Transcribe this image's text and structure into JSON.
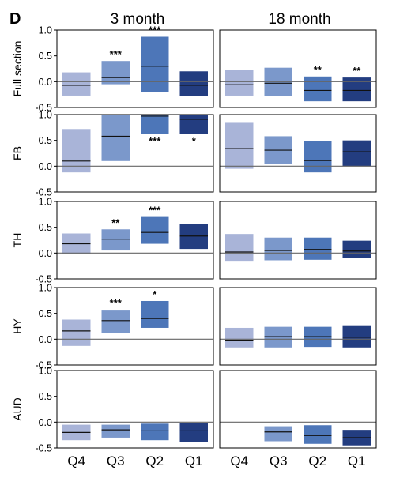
{
  "panel_label": "D",
  "column_titles": [
    "3 month",
    "18 month"
  ],
  "categories": [
    "Q4",
    "Q3",
    "Q2",
    "Q1"
  ],
  "colors": [
    "#a9b4d8",
    "#7b98cb",
    "#4d76b8",
    "#233d80"
  ],
  "chart_data": {
    "type": "box",
    "grid": false,
    "yticks": [
      "1.0",
      "0.5",
      "0.0",
      "-0.5"
    ],
    "rows": [
      {
        "label": "Full section",
        "ylim": [
          -0.5,
          1.0
        ],
        "panels": [
          {
            "title": "3 month",
            "boxes": [
              {
                "category": "Q4",
                "low": -0.27,
                "high": 0.18,
                "median": -0.07,
                "sig": ""
              },
              {
                "category": "Q3",
                "low": -0.05,
                "high": 0.4,
                "median": 0.08,
                "sig": "***"
              },
              {
                "category": "Q2",
                "low": -0.2,
                "high": 0.87,
                "median": 0.3,
                "sig": "***"
              },
              {
                "category": "Q1",
                "low": -0.28,
                "high": 0.2,
                "median": -0.07,
                "sig": ""
              }
            ]
          },
          {
            "title": "18 month",
            "boxes": [
              {
                "category": "Q4",
                "low": -0.27,
                "high": 0.22,
                "median": -0.06,
                "sig": ""
              },
              {
                "category": "Q3",
                "low": -0.28,
                "high": 0.27,
                "median": -0.03,
                "sig": ""
              },
              {
                "category": "Q2",
                "low": -0.38,
                "high": 0.1,
                "median": -0.17,
                "sig": "**"
              },
              {
                "category": "Q1",
                "low": -0.38,
                "high": 0.08,
                "median": -0.17,
                "sig": "**"
              }
            ]
          }
        ]
      },
      {
        "label": "FB",
        "ylim": [
          -0.5,
          1.0
        ],
        "panels": [
          {
            "title": "3 month",
            "boxes": [
              {
                "category": "Q4",
                "low": -0.12,
                "high": 0.72,
                "median": 0.1,
                "sig": ""
              },
              {
                "category": "Q3",
                "low": 0.1,
                "high": 1.0,
                "median": 0.58,
                "sig": ""
              },
              {
                "category": "Q2",
                "low": 0.62,
                "high": 1.0,
                "median": 0.97,
                "sig": "***"
              },
              {
                "category": "Q1",
                "low": 0.62,
                "high": 1.0,
                "median": 0.91,
                "sig": "*"
              }
            ]
          },
          {
            "title": "18 month",
            "boxes": [
              {
                "category": "Q4",
                "low": -0.05,
                "high": 0.84,
                "median": 0.34,
                "sig": ""
              },
              {
                "category": "Q3",
                "low": 0.05,
                "high": 0.58,
                "median": 0.31,
                "sig": ""
              },
              {
                "category": "Q2",
                "low": -0.12,
                "high": 0.48,
                "median": 0.11,
                "sig": ""
              },
              {
                "category": "Q1",
                "low": 0.0,
                "high": 0.5,
                "median": 0.28,
                "sig": ""
              }
            ]
          }
        ]
      },
      {
        "label": "TH",
        "ylim": [
          -0.5,
          1.0
        ],
        "panels": [
          {
            "title": "3 month",
            "boxes": [
              {
                "category": "Q4",
                "low": -0.02,
                "high": 0.38,
                "median": 0.18,
                "sig": ""
              },
              {
                "category": "Q3",
                "low": 0.05,
                "high": 0.46,
                "median": 0.27,
                "sig": "**"
              },
              {
                "category": "Q2",
                "low": 0.18,
                "high": 0.7,
                "median": 0.4,
                "sig": "***"
              },
              {
                "category": "Q1",
                "low": 0.08,
                "high": 0.56,
                "median": 0.33,
                "sig": ""
              }
            ]
          },
          {
            "title": "18 month",
            "boxes": [
              {
                "category": "Q4",
                "low": -0.15,
                "high": 0.37,
                "median": 0.02,
                "sig": ""
              },
              {
                "category": "Q3",
                "low": -0.14,
                "high": 0.3,
                "median": 0.05,
                "sig": ""
              },
              {
                "category": "Q2",
                "low": -0.13,
                "high": 0.3,
                "median": 0.07,
                "sig": ""
              },
              {
                "category": "Q1",
                "low": -0.1,
                "high": 0.24,
                "median": 0.04,
                "sig": ""
              }
            ]
          }
        ]
      },
      {
        "label": "HY",
        "ylim": [
          -0.5,
          1.0
        ],
        "panels": [
          {
            "title": "3 month",
            "boxes": [
              {
                "category": "Q4",
                "low": -0.13,
                "high": 0.38,
                "median": 0.16,
                "sig": ""
              },
              {
                "category": "Q3",
                "low": 0.12,
                "high": 0.57,
                "median": 0.36,
                "sig": "***"
              },
              {
                "category": "Q2",
                "low": 0.22,
                "high": 0.74,
                "median": 0.4,
                "sig": "*"
              },
              {
                "category": "Q1",
                "low": null,
                "high": null,
                "median": null,
                "sig": ""
              }
            ]
          },
          {
            "title": "18 month",
            "boxes": [
              {
                "category": "Q4",
                "low": -0.16,
                "high": 0.22,
                "median": -0.02,
                "sig": ""
              },
              {
                "category": "Q3",
                "low": -0.16,
                "high": 0.24,
                "median": 0.05,
                "sig": ""
              },
              {
                "category": "Q2",
                "low": -0.15,
                "high": 0.24,
                "median": 0.05,
                "sig": ""
              },
              {
                "category": "Q1",
                "low": -0.16,
                "high": 0.27,
                "median": 0.04,
                "sig": ""
              }
            ]
          }
        ]
      },
      {
        "label": "AUD",
        "ylim": [
          -0.5,
          1.0
        ],
        "panels": [
          {
            "title": "3 month",
            "boxes": [
              {
                "category": "Q4",
                "low": -0.35,
                "high": -0.05,
                "median": -0.2,
                "sig": ""
              },
              {
                "category": "Q3",
                "low": -0.3,
                "high": -0.05,
                "median": -0.15,
                "sig": ""
              },
              {
                "category": "Q2",
                "low": -0.35,
                "high": -0.03,
                "median": -0.17,
                "sig": ""
              },
              {
                "category": "Q1",
                "low": -0.38,
                "high": -0.02,
                "median": -0.17,
                "sig": ""
              }
            ]
          },
          {
            "title": "18 month",
            "boxes": [
              {
                "category": "Q4",
                "low": null,
                "high": null,
                "median": null,
                "sig": ""
              },
              {
                "category": "Q3",
                "low": -0.37,
                "high": -0.08,
                "median": -0.19,
                "sig": ""
              },
              {
                "category": "Q2",
                "low": -0.42,
                "high": -0.06,
                "median": -0.26,
                "sig": ""
              },
              {
                "category": "Q1",
                "low": -0.45,
                "high": -0.15,
                "median": -0.3,
                "sig": ""
              }
            ]
          }
        ]
      }
    ]
  }
}
